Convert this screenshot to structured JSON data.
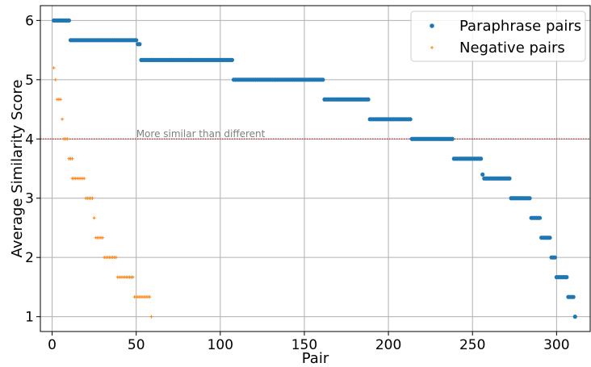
{
  "chart_data": {
    "type": "scatter",
    "xlabel": "Pair",
    "ylabel": "Average Similarity Score",
    "xlim": [
      -7,
      320
    ],
    "ylim": [
      0.75,
      6.25
    ],
    "x_ticks": [
      0,
      50,
      100,
      150,
      200,
      250,
      300
    ],
    "y_ticks": [
      1,
      2,
      3,
      4,
      5,
      6
    ],
    "grid": true,
    "legend_position": "top-right",
    "reference_line": {
      "y": 4.0,
      "color": "#c00000",
      "style": "dotted"
    },
    "annotation": {
      "text": "More similar than different",
      "x": 50,
      "y": 4.03
    },
    "series": [
      {
        "name": "Paraphrase pairs",
        "marker": "circle",
        "color": "#1f77b4",
        "runs": [
          {
            "x_start": 1,
            "x_end": 10,
            "y": 6.0
          },
          {
            "x_start": 11,
            "x_end": 50,
            "y": 5.667
          },
          {
            "x_start": 51,
            "x_end": 52,
            "y": 5.6
          },
          {
            "x_start": 53,
            "x_end": 107,
            "y": 5.333
          },
          {
            "x_start": 108,
            "x_end": 161,
            "y": 5.0
          },
          {
            "x_start": 162,
            "x_end": 188,
            "y": 4.667
          },
          {
            "x_start": 189,
            "x_end": 213,
            "y": 4.333
          },
          {
            "x_start": 214,
            "x_end": 238,
            "y": 4.0
          },
          {
            "x_start": 239,
            "x_end": 255,
            "y": 3.667
          },
          {
            "x_start": 256,
            "x_end": 256,
            "y": 3.4
          },
          {
            "x_start": 257,
            "x_end": 272,
            "y": 3.333
          },
          {
            "x_start": 273,
            "x_end": 284,
            "y": 3.0
          },
          {
            "x_start": 285,
            "x_end": 290,
            "y": 2.667
          },
          {
            "x_start": 291,
            "x_end": 296,
            "y": 2.333
          },
          {
            "x_start": 297,
            "x_end": 299,
            "y": 2.0
          },
          {
            "x_start": 300,
            "x_end": 306,
            "y": 1.667
          },
          {
            "x_start": 307,
            "x_end": 310,
            "y": 1.333
          },
          {
            "x_start": 311,
            "x_end": 311,
            "y": 1.0
          }
        ]
      },
      {
        "name": "Negative pairs",
        "marker": "plus",
        "color": "#ff7f0e",
        "runs": [
          {
            "x_start": 1,
            "x_end": 1,
            "y": 5.2
          },
          {
            "x_start": 2,
            "x_end": 2,
            "y": 5.0
          },
          {
            "x_start": 3,
            "x_end": 5,
            "y": 4.667
          },
          {
            "x_start": 6,
            "x_end": 6,
            "y": 4.333
          },
          {
            "x_start": 7,
            "x_end": 9,
            "y": 4.0
          },
          {
            "x_start": 10,
            "x_end": 12,
            "y": 3.667
          },
          {
            "x_start": 12,
            "x_end": 19,
            "y": 3.333
          },
          {
            "x_start": 20,
            "x_end": 24,
            "y": 3.0
          },
          {
            "x_start": 25,
            "x_end": 25,
            "y": 2.667
          },
          {
            "x_start": 26,
            "x_end": 30,
            "y": 2.333
          },
          {
            "x_start": 31,
            "x_end": 38,
            "y": 2.0
          },
          {
            "x_start": 39,
            "x_end": 48,
            "y": 1.667
          },
          {
            "x_start": 49,
            "x_end": 58,
            "y": 1.333
          },
          {
            "x_start": 59,
            "x_end": 59,
            "y": 1.0
          }
        ]
      }
    ]
  }
}
